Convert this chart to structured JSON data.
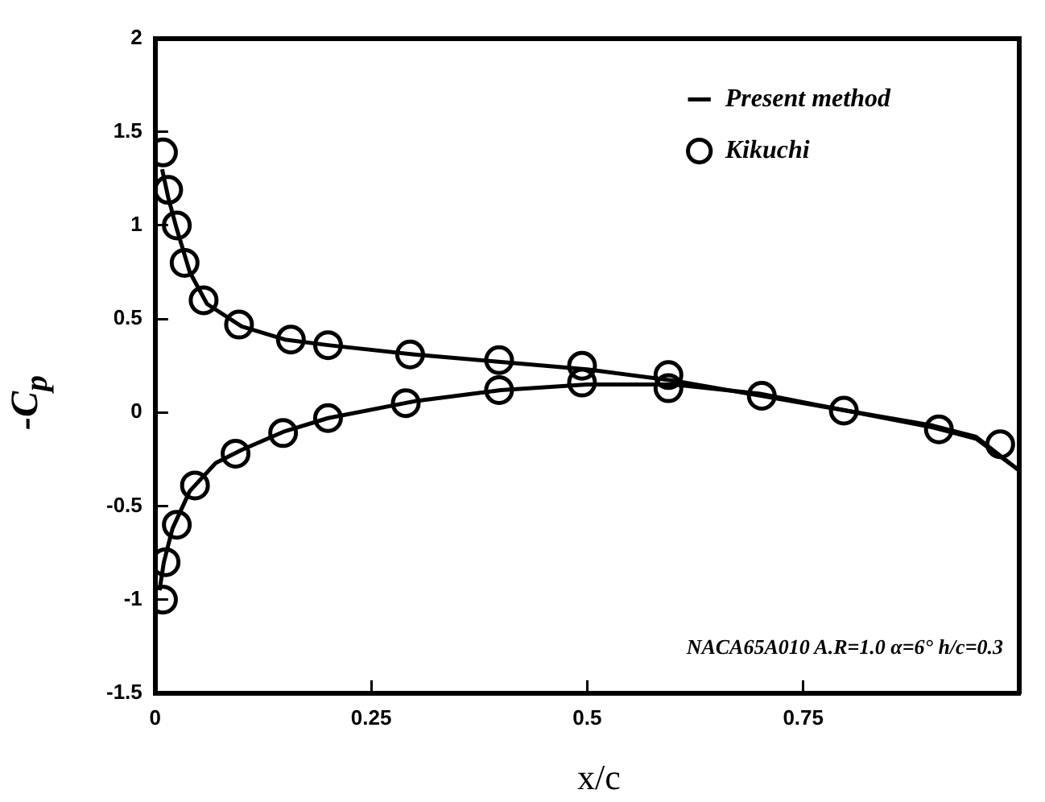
{
  "chart_data": {
    "type": "scatter",
    "xlabel": "x/c",
    "ylabel": "-C$_{p}$",
    "xlim": [
      0,
      1
    ],
    "ylim": [
      -1.5,
      2
    ],
    "xticks": [
      0,
      0.25,
      0.5,
      0.75
    ],
    "yticks": [
      -1.5,
      -1,
      -0.5,
      0,
      0.5,
      1,
      1.5,
      2
    ],
    "grid": false,
    "legend": "top right",
    "annotations": [
      "NACA65A010 A.R=1.0 α=6° h/c=0.3"
    ],
    "series": [
      {
        "name": "Present method",
        "type": "line",
        "color": "#000000",
        "marker": "none",
        "line_style": "solid",
        "x": [
          0.008,
          0.015,
          0.025,
          0.04,
          0.06,
          0.1,
          0.15,
          0.2,
          0.3,
          0.4,
          0.5,
          0.6,
          0.7,
          0.8,
          0.9,
          0.95,
          1.0
        ],
        "values": [
          1.3,
          1.15,
          0.98,
          0.75,
          0.58,
          0.46,
          0.39,
          0.36,
          0.31,
          0.27,
          0.23,
          0.17,
          0.09,
          0.01,
          -0.07,
          -0.13,
          -0.31
        ]
      },
      {
        "type": "line",
        "color": "#000000",
        "marker": "none",
        "line_style": "solid",
        "x": [
          0.005,
          0.01,
          0.02,
          0.04,
          0.07,
          0.1,
          0.15,
          0.2,
          0.3,
          0.4,
          0.5,
          0.6,
          0.7,
          0.8,
          0.9,
          0.95,
          1.0
        ],
        "values": [
          -0.95,
          -0.8,
          -0.62,
          -0.42,
          -0.27,
          -0.2,
          -0.1,
          -0.03,
          0.06,
          0.12,
          0.15,
          0.15,
          0.1,
          0.01,
          -0.08,
          -0.14,
          -0.31
        ]
      },
      {
        "name": "Kikuchi",
        "type": "scatter",
        "color": "#000000",
        "marker": "circle",
        "x": [
          0.009,
          0.015,
          0.025,
          0.034,
          0.056,
          0.097,
          0.157,
          0.2,
          0.295,
          0.398,
          0.494,
          0.594,
          0.702,
          0.797,
          0.907,
          0.978,
          0.009,
          0.012,
          0.025,
          0.046,
          0.093,
          0.148,
          0.2,
          0.29,
          0.398,
          0.494,
          0.594
        ],
        "values": [
          1.39,
          1.19,
          1.0,
          0.8,
          0.6,
          0.47,
          0.39,
          0.36,
          0.31,
          0.28,
          0.25,
          0.2,
          0.09,
          0.01,
          -0.09,
          -0.17,
          -1.0,
          -0.8,
          -0.6,
          -0.39,
          -0.22,
          -0.11,
          -0.03,
          0.05,
          0.12,
          0.16,
          0.13
        ]
      }
    ]
  }
}
